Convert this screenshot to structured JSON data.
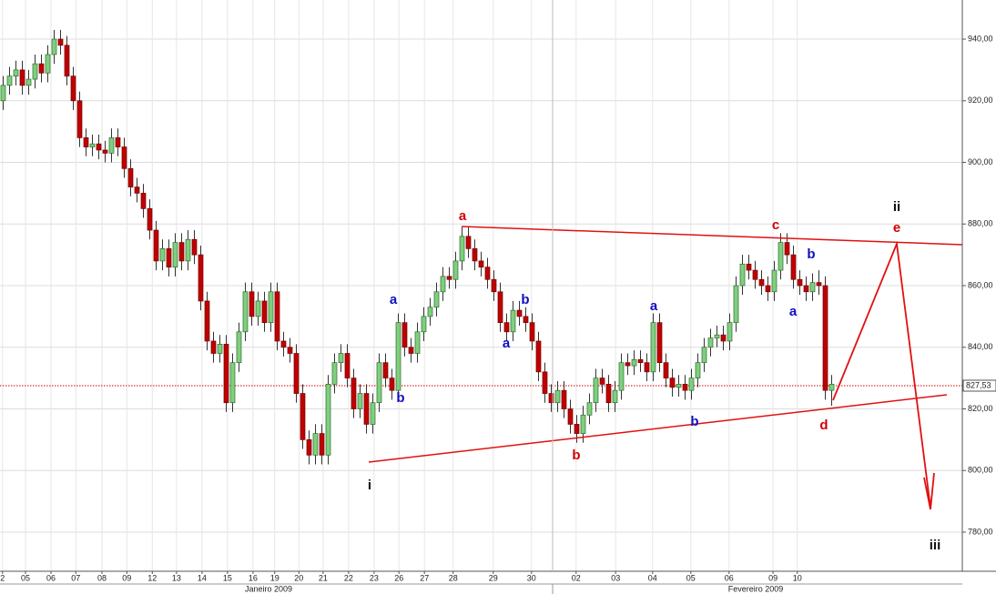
{
  "chart_data": {
    "type": "candlestick",
    "up_color": "#7fcf7f",
    "down_color": "#c00000",
    "grid": true,
    "xlim": [
      0,
      151
    ],
    "ylim": [
      767.3,
      952.7
    ],
    "yticks": [
      {
        "value": 780,
        "label": "780,00"
      },
      {
        "value": 800,
        "label": "800,00"
      },
      {
        "value": 820,
        "label": "820,00"
      },
      {
        "value": 840,
        "label": "840,00"
      },
      {
        "value": 860,
        "label": "860,00"
      },
      {
        "value": 880,
        "label": "880,00"
      },
      {
        "value": 900,
        "label": "900,00"
      },
      {
        "value": 920,
        "label": "920,00"
      },
      {
        "value": 940,
        "label": "940,00"
      }
    ],
    "xticks": [
      {
        "value": 0.4,
        "label": "2"
      },
      {
        "value": 4,
        "label": "05"
      },
      {
        "value": 8,
        "label": "06"
      },
      {
        "value": 11.9,
        "label": "07"
      },
      {
        "value": 16,
        "label": "08"
      },
      {
        "value": 19.9,
        "label": "09"
      },
      {
        "value": 23.9,
        "label": "12"
      },
      {
        "value": 27.7,
        "label": "13"
      },
      {
        "value": 31.7,
        "label": "14"
      },
      {
        "value": 35.7,
        "label": "15"
      },
      {
        "value": 39.7,
        "label": "16"
      },
      {
        "value": 43.1,
        "label": "19"
      },
      {
        "value": 46.9,
        "label": "20"
      },
      {
        "value": 50.7,
        "label": "21"
      },
      {
        "value": 54.7,
        "label": "22"
      },
      {
        "value": 58.7,
        "label": "23"
      },
      {
        "value": 62.6,
        "label": "26"
      },
      {
        "value": 66.6,
        "label": "27"
      },
      {
        "value": 71.1,
        "label": "28"
      },
      {
        "value": 77.4,
        "label": "29"
      },
      {
        "value": 83.4,
        "label": "30"
      },
      {
        "value": 90.4,
        "label": "02"
      },
      {
        "value": 96.6,
        "label": "03"
      },
      {
        "value": 102.4,
        "label": "04"
      },
      {
        "value": 108.4,
        "label": "05"
      },
      {
        "value": 114.4,
        "label": "06"
      },
      {
        "value": 121.3,
        "label": "09"
      },
      {
        "value": 125.1,
        "label": "10"
      }
    ],
    "months": [
      "Janeiro 2009",
      "Fevereiro 2009"
    ],
    "last_price": {
      "value": 827.53,
      "label": "827,53",
      "color": "#d00000"
    },
    "open": [
      920,
      925,
      928,
      930,
      925,
      927,
      932,
      929,
      935,
      940,
      938,
      928,
      920,
      908,
      905,
      906,
      904,
      903,
      908,
      905,
      898,
      892,
      890,
      885,
      878,
      868,
      872,
      866,
      874,
      868,
      875,
      870,
      855,
      842,
      838,
      841,
      822,
      835,
      845,
      858,
      850,
      855,
      848,
      858,
      842,
      840,
      838,
      825,
      810,
      805,
      812,
      805,
      828,
      835,
      838,
      830,
      820,
      825,
      815,
      822,
      835,
      830,
      826,
      848,
      840,
      838,
      845,
      850,
      853,
      858,
      863,
      862,
      868,
      876,
      872,
      868,
      866,
      862,
      858,
      848,
      845,
      852,
      850,
      848,
      842,
      832,
      825,
      822,
      826,
      820,
      815,
      812,
      818,
      822,
      830,
      828,
      822,
      826,
      835,
      834,
      836,
      835,
      832,
      848,
      835,
      830,
      827,
      828,
      826,
      830,
      835,
      840,
      843,
      844,
      842,
      848,
      860,
      867,
      865,
      862,
      860,
      858,
      865,
      874,
      870,
      862,
      860,
      858,
      861,
      860,
      826
    ],
    "high": [
      928,
      931,
      933,
      933,
      930,
      935,
      935,
      938,
      943,
      943,
      941,
      931,
      923,
      911,
      909,
      909,
      907,
      911,
      911,
      908,
      901,
      895,
      893,
      888,
      881,
      875,
      875,
      877,
      877,
      878,
      878,
      873,
      858,
      845,
      844,
      844,
      838,
      848,
      861,
      861,
      858,
      858,
      861,
      861,
      845,
      843,
      841,
      828,
      813,
      815,
      815,
      831,
      838,
      841,
      841,
      833,
      828,
      828,
      825,
      838,
      838,
      833,
      851,
      851,
      843,
      848,
      853,
      856,
      861,
      866,
      866,
      871,
      879,
      879,
      875,
      871,
      869,
      865,
      861,
      851,
      855,
      855,
      853,
      851,
      845,
      835,
      828,
      829,
      829,
      823,
      818,
      821,
      825,
      833,
      833,
      831,
      829,
      838,
      838,
      839,
      839,
      838,
      851,
      851,
      838,
      833,
      831,
      831,
      833,
      838,
      843,
      846,
      847,
      847,
      851,
      863,
      870,
      870,
      868,
      865,
      863,
      868,
      877,
      877,
      873,
      865,
      863,
      864,
      865,
      863,
      831
    ],
    "low": [
      917,
      922,
      925,
      922,
      922,
      924,
      926,
      926,
      932,
      935,
      925,
      917,
      905,
      902,
      902,
      901,
      900,
      900,
      902,
      895,
      889,
      887,
      882,
      875,
      865,
      865,
      863,
      863,
      865,
      865,
      867,
      852,
      839,
      835,
      835,
      819,
      819,
      832,
      842,
      847,
      847,
      845,
      845,
      839,
      837,
      835,
      822,
      807,
      802,
      802,
      802,
      802,
      825,
      832,
      827,
      817,
      817,
      812,
      812,
      819,
      827,
      823,
      823,
      837,
      835,
      835,
      842,
      847,
      850,
      855,
      859,
      859,
      865,
      869,
      865,
      863,
      859,
      855,
      845,
      842,
      842,
      847,
      845,
      839,
      829,
      822,
      819,
      819,
      817,
      812,
      809,
      809,
      815,
      819,
      825,
      819,
      819,
      823,
      831,
      831,
      832,
      829,
      829,
      832,
      827,
      824,
      824,
      823,
      823,
      827,
      832,
      837,
      840,
      839,
      839,
      845,
      857,
      862,
      859,
      857,
      855,
      855,
      862,
      867,
      859,
      857,
      855,
      855,
      857,
      823,
      821
    ],
    "close": [
      925,
      928,
      930,
      925,
      927,
      932,
      929,
      935,
      940,
      938,
      928,
      920,
      908,
      905,
      906,
      904,
      903,
      908,
      905,
      898,
      892,
      890,
      885,
      878,
      868,
      872,
      866,
      874,
      868,
      875,
      870,
      855,
      842,
      838,
      841,
      822,
      835,
      845,
      858,
      850,
      855,
      848,
      858,
      842,
      840,
      838,
      825,
      810,
      805,
      812,
      805,
      828,
      835,
      838,
      830,
      820,
      825,
      815,
      822,
      835,
      830,
      826,
      848,
      840,
      838,
      845,
      850,
      853,
      858,
      863,
      862,
      868,
      876,
      872,
      868,
      866,
      862,
      858,
      848,
      845,
      852,
      850,
      848,
      842,
      832,
      825,
      822,
      826,
      820,
      815,
      812,
      818,
      822,
      830,
      828,
      822,
      826,
      835,
      834,
      836,
      835,
      832,
      848,
      835,
      830,
      827,
      828,
      826,
      830,
      835,
      840,
      843,
      844,
      842,
      848,
      860,
      867,
      865,
      862,
      860,
      858,
      865,
      874,
      870,
      862,
      860,
      858,
      861,
      860,
      826,
      828
    ],
    "annotations": [
      {
        "text": "a",
        "color": "#d00000"
      },
      {
        "text": "b",
        "color": "#d00000"
      },
      {
        "text": "c",
        "color": "#d00000"
      },
      {
        "text": "d",
        "color": "#d00000"
      },
      {
        "text": "e",
        "color": "#d00000"
      },
      {
        "text": "i",
        "color": "#111111"
      },
      {
        "text": "ii",
        "color": "#111111"
      },
      {
        "text": "iii",
        "color": "#111111"
      },
      {
        "text": "a",
        "color": "#1010c0"
      },
      {
        "text": "b",
        "color": "#1010c0"
      },
      {
        "text": "a",
        "color": "#1010c0"
      },
      {
        "text": "b",
        "color": "#1010c0"
      },
      {
        "text": "a",
        "color": "#1010c0"
      },
      {
        "text": "b",
        "color": "#1010c0"
      },
      {
        "text": "b",
        "color": "#1010c0"
      },
      {
        "text": "a",
        "color": "#1010c0"
      }
    ]
  }
}
